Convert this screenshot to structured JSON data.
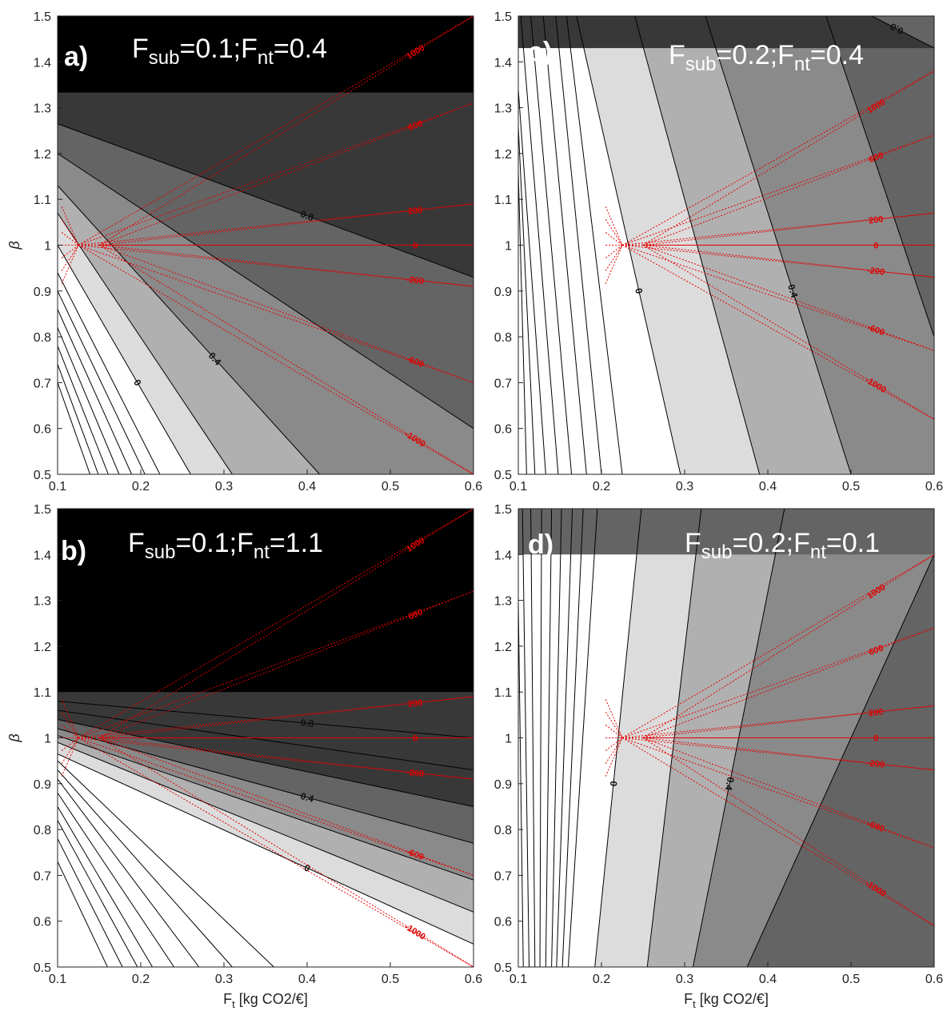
{
  "colors": {
    "levels": [
      "#ffffff",
      "#dcdcdc",
      "#b0b0b0",
      "#8a8a8a",
      "#646464",
      "#383838",
      "#000000"
    ],
    "contour_line": "#000000",
    "red_line": "#e60000",
    "label_light": "#ffffff",
    "label_dark": "#000000"
  },
  "chart_data": [
    {
      "type": "contour",
      "panel_label": "a)",
      "title_parts": {
        "f1": "F",
        "s1": "sub",
        "v1": "=0.1;",
        "f2": "F",
        "s2": "nt",
        "v2": "=0.4"
      },
      "xlabel": "",
      "ylabel": "β",
      "xlim": [
        0.1,
        0.6
      ],
      "ylim": [
        0.5,
        1.5
      ],
      "xticks": [
        "0.1",
        "0.2",
        "0.3",
        "0.4",
        "0.5",
        "0.6"
      ],
      "yticks": [
        "0.5",
        "0.6",
        "0.7",
        "0.8",
        "0.9",
        "1",
        "1.1",
        "1.2",
        "1.3",
        "1.4",
        "1.5"
      ],
      "top_band_from_beta": 1.333,
      "contours": [
        {
          "label": "",
          "points": [
            [
              0.1,
              0.7
            ],
            [
              0.139,
              0.5
            ]
          ]
        },
        {
          "label": "",
          "points": [
            [
              0.1,
              0.74
            ],
            [
              0.149,
              0.5
            ]
          ]
        },
        {
          "label": "",
          "points": [
            [
              0.1,
              0.78
            ],
            [
              0.161,
              0.5
            ]
          ]
        },
        {
          "label": "",
          "points": [
            [
              0.1,
              0.82
            ],
            [
              0.174,
              0.5
            ]
          ]
        },
        {
          "label": "",
          "points": [
            [
              0.1,
              0.86
            ],
            [
              0.189,
              0.5
            ]
          ]
        },
        {
          "label": "",
          "points": [
            [
              0.1,
              0.9
            ],
            [
              0.205,
              0.5
            ]
          ]
        },
        {
          "label": "",
          "points": [
            [
              0.1,
              0.94
            ],
            [
              0.223,
              0.5
            ]
          ]
        },
        {
          "label": "0",
          "points": [
            [
              0.1,
              1.0
            ],
            [
              0.26,
              0.5
            ]
          ]
        },
        {
          "label": "",
          "points": [
            [
              0.1,
              1.07
            ],
            [
              0.31,
              0.5
            ]
          ]
        },
        {
          "label": "0.4",
          "points": [
            [
              0.1,
              1.13
            ],
            [
              0.415,
              0.5
            ]
          ]
        },
        {
          "label": "",
          "points": [
            [
              0.1,
              1.2
            ],
            [
              0.6,
              0.6
            ]
          ]
        },
        {
          "label": "0.8",
          "points": [
            [
              0.1,
              1.265
            ],
            [
              0.6,
              0.93
            ]
          ]
        }
      ],
      "red_lines": [
        {
          "label": "1000",
          "end": [
            0.6,
            1.5
          ]
        },
        {
          "label": "600",
          "end": [
            0.6,
            1.31
          ]
        },
        {
          "label": "200",
          "end": [
            0.6,
            1.09
          ]
        },
        {
          "label": "0",
          "end": [
            0.6,
            1.0
          ]
        },
        {
          "label": "-200",
          "end": [
            0.6,
            0.91
          ]
        },
        {
          "label": "-600",
          "end": [
            0.6,
            0.7
          ]
        },
        {
          "label": "-1000",
          "end": [
            0.6,
            0.5
          ]
        }
      ],
      "red_origin_x": [
        0.125,
        0.15
      ]
    },
    {
      "type": "contour",
      "panel_label": "b)",
      "title_parts": {
        "f1": "F",
        "s1": "sub",
        "v1": "=0.1;",
        "f2": "F",
        "s2": "nt",
        "v2": "=1.1"
      },
      "xlabel": "F_t [kg CO2/€]",
      "ylabel": "β",
      "xlim": [
        0.1,
        0.6
      ],
      "ylim": [
        0.5,
        1.5
      ],
      "xticks": [
        "0.1",
        "0.2",
        "0.3",
        "0.4",
        "0.5",
        "0.6"
      ],
      "yticks": [
        "0.5",
        "0.6",
        "0.7",
        "0.8",
        "0.9",
        "1",
        "1.1",
        "1.2",
        "1.3",
        "1.4",
        "1.5"
      ],
      "top_band_from_beta": 1.1,
      "contours": [
        {
          "label": "",
          "points": [
            [
              0.1,
              0.73
            ],
            [
              0.16,
              0.5
            ]
          ]
        },
        {
          "label": "",
          "points": [
            [
              0.1,
              0.78
            ],
            [
              0.178,
              0.5
            ]
          ]
        },
        {
          "label": "",
          "points": [
            [
              0.1,
              0.82
            ],
            [
              0.196,
              0.5
            ]
          ]
        },
        {
          "label": "",
          "points": [
            [
              0.1,
              0.85
            ],
            [
              0.214,
              0.5
            ]
          ]
        },
        {
          "label": "",
          "points": [
            [
              0.1,
              0.88
            ],
            [
              0.24,
              0.5
            ]
          ]
        },
        {
          "label": "",
          "points": [
            [
              0.1,
              0.91
            ],
            [
              0.27,
              0.5
            ]
          ]
        },
        {
          "label": "",
          "points": [
            [
              0.1,
              0.93
            ],
            [
              0.31,
              0.5
            ]
          ]
        },
        {
          "label": "",
          "points": [
            [
              0.1,
              0.95
            ],
            [
              0.36,
              0.5
            ]
          ]
        },
        {
          "label": "0",
          "points": [
            [
              0.1,
              0.965
            ],
            [
              0.6,
              0.55
            ]
          ]
        },
        {
          "label": "",
          "points": [
            [
              0.1,
              0.99
            ],
            [
              0.6,
              0.62
            ]
          ]
        },
        {
          "label": "",
          "points": [
            [
              0.1,
              1.005
            ],
            [
              0.6,
              0.69
            ]
          ]
        },
        {
          "label": "0.4",
          "points": [
            [
              0.1,
              1.02
            ],
            [
              0.6,
              0.77
            ]
          ]
        },
        {
          "label": "",
          "points": [
            [
              0.1,
              1.04
            ],
            [
              0.6,
              0.85
            ]
          ]
        },
        {
          "label": "",
          "points": [
            [
              0.1,
              1.06
            ],
            [
              0.6,
              0.93
            ]
          ]
        },
        {
          "label": "0.8",
          "points": [
            [
              0.1,
              1.08
            ],
            [
              0.6,
              1.0
            ]
          ]
        }
      ],
      "red_lines": [
        {
          "label": "1000",
          "end": [
            0.6,
            1.5
          ]
        },
        {
          "label": "600",
          "end": [
            0.6,
            1.32
          ]
        },
        {
          "label": "200",
          "end": [
            0.6,
            1.09
          ]
        },
        {
          "label": "0",
          "end": [
            0.6,
            1.0
          ]
        },
        {
          "label": "-200",
          "end": [
            0.6,
            0.91
          ]
        },
        {
          "label": "-600",
          "end": [
            0.6,
            0.7
          ]
        },
        {
          "label": "-1000",
          "end": [
            0.6,
            0.5
          ]
        }
      ],
      "red_origin_x": [
        0.125,
        0.15
      ]
    },
    {
      "type": "contour",
      "panel_label": "c)",
      "title_parts": {
        "f1": "F",
        "s1": "sub",
        "v1": "=0.2;",
        "f2": "F",
        "s2": "nt",
        "v2": "=0.4"
      },
      "xlabel": "",
      "ylabel": "",
      "xlim": [
        0.1,
        0.6
      ],
      "ylim": [
        0.5,
        1.5
      ],
      "xticks": [
        "0.1",
        "0.2",
        "0.3",
        "0.4",
        "0.5",
        "0.6"
      ],
      "yticks": [
        "0.5",
        "0.6",
        "0.7",
        "0.8",
        "0.9",
        "1",
        "1.1",
        "1.2",
        "1.3",
        "1.4",
        "1.5"
      ],
      "top_band_from_beta": null,
      "contours": [
        {
          "label": "",
          "points": [
            [
              0.1,
              1.16
            ],
            [
              0.11,
              0.5
            ]
          ]
        },
        {
          "label": "",
          "points": [
            [
              0.1,
              1.26
            ],
            [
              0.12,
              0.5
            ]
          ]
        },
        {
          "label": "",
          "points": [
            [
              0.1,
              1.34
            ],
            [
              0.133,
              0.5
            ]
          ]
        },
        {
          "label": "",
          "points": [
            [
              0.103,
              1.5
            ],
            [
              0.148,
              0.5
            ]
          ]
        },
        {
          "label": "",
          "points": [
            [
              0.115,
              1.5
            ],
            [
              0.164,
              0.5
            ]
          ]
        },
        {
          "label": "",
          "points": [
            [
              0.13,
              1.5
            ],
            [
              0.182,
              0.5
            ]
          ]
        },
        {
          "label": "",
          "points": [
            [
              0.145,
              1.5
            ],
            [
              0.2,
              0.5
            ]
          ]
        },
        {
          "label": "",
          "points": [
            [
              0.158,
              1.5
            ],
            [
              0.225,
              0.5
            ]
          ]
        },
        {
          "label": "0",
          "points": [
            [
              0.17,
              1.5
            ],
            [
              0.295,
              0.5
            ]
          ]
        },
        {
          "label": "",
          "points": [
            [
              0.24,
              1.5
            ],
            [
              0.39,
              0.5
            ]
          ]
        },
        {
          "label": "0.4",
          "points": [
            [
              0.325,
              1.5
            ],
            [
              0.5,
              0.5
            ]
          ]
        },
        {
          "label": "",
          "points": [
            [
              0.47,
              1.5
            ],
            [
              0.6,
              0.8
            ]
          ]
        },
        {
          "label": "0.8",
          "points": [
            [
              0.6,
              1.43
            ],
            [
              0.525,
              1.5
            ]
          ]
        }
      ],
      "red_lines": [
        {
          "label": "1000",
          "end": [
            0.6,
            1.38
          ]
        },
        {
          "label": "600",
          "end": [
            0.6,
            1.24
          ]
        },
        {
          "label": "200",
          "end": [
            0.6,
            1.07
          ]
        },
        {
          "label": "0",
          "end": [
            0.6,
            1.0
          ]
        },
        {
          "label": "-200",
          "end": [
            0.6,
            0.93
          ]
        },
        {
          "label": "-600",
          "end": [
            0.6,
            0.77
          ]
        },
        {
          "label": "-1000",
          "end": [
            0.6,
            0.62
          ]
        }
      ],
      "red_origin_x": [
        0.225,
        0.25
      ]
    },
    {
      "type": "contour",
      "panel_label": "d)",
      "title_parts": {
        "f1": "F",
        "s1": "sub",
        "v1": "=0.2;",
        "f2": "F",
        "s2": "nt",
        "v2": "=0.1"
      },
      "xlabel": "F_t [kg CO2/€]",
      "ylabel": "",
      "xlim": [
        0.1,
        0.6
      ],
      "ylim": [
        0.5,
        1.5
      ],
      "xticks": [
        "0.1",
        "0.2",
        "0.3",
        "0.4",
        "0.5",
        "0.6"
      ],
      "yticks": [
        "0.5",
        "0.6",
        "0.7",
        "0.8",
        "0.9",
        "1",
        "1.1",
        "1.2",
        "1.3",
        "1.4",
        "1.5"
      ],
      "top_band_from_beta": null,
      "contours": [
        {
          "label": "",
          "points": [
            [
              0.1,
              1.3
            ],
            [
              0.106,
              0.5
            ]
          ]
        },
        {
          "label": "",
          "points": [
            [
              0.105,
              1.5
            ],
            [
              0.113,
              0.5
            ]
          ]
        },
        {
          "label": "",
          "points": [
            [
              0.115,
              1.5
            ],
            [
              0.12,
              0.5
            ]
          ]
        },
        {
          "label": "",
          "points": [
            [
              0.128,
              1.5
            ],
            [
              0.126,
              0.5
            ]
          ]
        },
        {
          "label": "",
          "points": [
            [
              0.14,
              1.5
            ],
            [
              0.133,
              0.5
            ]
          ]
        },
        {
          "label": "",
          "points": [
            [
              0.152,
              1.5
            ],
            [
              0.14,
              0.5
            ]
          ]
        },
        {
          "label": "",
          "points": [
            [
              0.165,
              1.5
            ],
            [
              0.146,
              0.5
            ]
          ]
        },
        {
          "label": "",
          "points": [
            [
              0.178,
              1.5
            ],
            [
              0.153,
              0.5
            ]
          ]
        },
        {
          "label": "",
          "points": [
            [
              0.195,
              1.5
            ],
            [
              0.16,
              0.5
            ]
          ]
        },
        {
          "label": "0",
          "points": [
            [
              0.248,
              1.5
            ],
            [
              0.192,
              0.5
            ]
          ]
        },
        {
          "label": "",
          "points": [
            [
              0.32,
              1.5
            ],
            [
              0.255,
              0.5
            ]
          ]
        },
        {
          "label": "0.4",
          "points": [
            [
              0.42,
              1.5
            ],
            [
              0.31,
              0.5
            ]
          ]
        },
        {
          "label": "",
          "points": [
            [
              0.6,
              1.4
            ],
            [
              0.375,
              0.5
            ]
          ]
        }
      ],
      "red_lines": [
        {
          "label": "1000",
          "end": [
            0.6,
            1.4
          ]
        },
        {
          "label": "600",
          "end": [
            0.6,
            1.24
          ]
        },
        {
          "label": "200",
          "end": [
            0.6,
            1.07
          ]
        },
        {
          "label": "0",
          "end": [
            0.6,
            1.0
          ]
        },
        {
          "label": "-200",
          "end": [
            0.6,
            0.93
          ]
        },
        {
          "label": "-600",
          "end": [
            0.6,
            0.76
          ]
        },
        {
          "label": "-1000",
          "end": [
            0.6,
            0.59
          ]
        }
      ],
      "red_origin_x": [
        0.225,
        0.25
      ]
    }
  ]
}
